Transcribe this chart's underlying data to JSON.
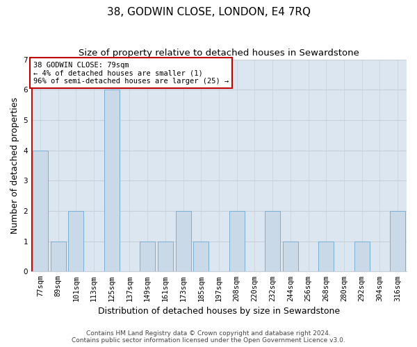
{
  "title": "38, GODWIN CLOSE, LONDON, E4 7RQ",
  "subtitle": "Size of property relative to detached houses in Sewardstone",
  "xlabel": "Distribution of detached houses by size in Sewardstone",
  "ylabel": "Number of detached properties",
  "footer_line1": "Contains HM Land Registry data © Crown copyright and database right 2024.",
  "footer_line2": "Contains public sector information licensed under the Open Government Licence v3.0.",
  "annotation_line1": "38 GODWIN CLOSE: 79sqm",
  "annotation_line2": "← 4% of detached houses are smaller (1)",
  "annotation_line3": "96% of semi-detached houses are larger (25) →",
  "categories": [
    "77sqm",
    "89sqm",
    "101sqm",
    "113sqm",
    "125sqm",
    "137sqm",
    "149sqm",
    "161sqm",
    "173sqm",
    "185sqm",
    "197sqm",
    "208sqm",
    "220sqm",
    "232sqm",
    "244sqm",
    "256sqm",
    "268sqm",
    "280sqm",
    "292sqm",
    "304sqm",
    "316sqm"
  ],
  "values": [
    4,
    1,
    2,
    0,
    6,
    0,
    1,
    1,
    2,
    1,
    0,
    2,
    0,
    2,
    1,
    0,
    1,
    0,
    1,
    0,
    2
  ],
  "bar_color": "#c9d9e8",
  "bar_edge_color": "#7bafd4",
  "annotation_box_edge_color": "#c00000",
  "ylim": [
    0,
    7
  ],
  "yticks": [
    0,
    1,
    2,
    3,
    4,
    5,
    6,
    7
  ],
  "grid_color": "#c8d0d8",
  "bg_color": "#dce6f0",
  "fig_bg_color": "#ffffff",
  "title_fontsize": 11,
  "subtitle_fontsize": 9.5,
  "tick_fontsize": 7.5,
  "ylabel_fontsize": 9,
  "xlabel_fontsize": 9,
  "annotation_fontsize": 7.5,
  "footer_fontsize": 6.5
}
